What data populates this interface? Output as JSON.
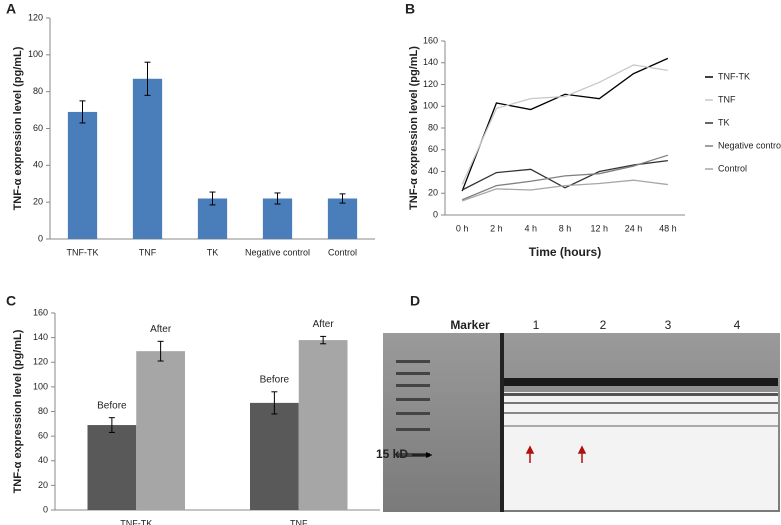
{
  "chart_data": [
    {
      "panel": "A",
      "type": "bar",
      "ylabel": "TNF-α expression level (pg/mL)",
      "categories": [
        "TNF-TK",
        "TNF",
        "TK",
        "Negative control",
        "Control"
      ],
      "values": [
        69,
        87,
        22,
        22,
        22
      ],
      "errors": [
        6,
        9,
        3.5,
        3,
        2.5
      ],
      "color": "#4a7ebb",
      "ylim": [
        0,
        120
      ],
      "yticks": [
        0,
        20,
        40,
        60,
        80,
        100,
        120
      ]
    },
    {
      "panel": "B",
      "type": "line",
      "ylabel": "TNF-α expression level (pg/mL)",
      "xlabel": "Time (hours)",
      "categories": [
        "0 h",
        "2 h",
        "4 h",
        "8 h",
        "12 h",
        "24 h",
        "48 h"
      ],
      "series": [
        {
          "name": "TNF-TK",
          "color": "#000000",
          "values": [
            22,
            103,
            97,
            111,
            107,
            130,
            144
          ]
        },
        {
          "name": "TNF",
          "color": "#c8c8c8",
          "values": [
            28,
            98,
            107,
            109,
            122,
            138,
            133
          ]
        },
        {
          "name": "TK",
          "color": "#333333",
          "values": [
            23,
            39,
            42,
            25,
            40,
            46,
            50
          ]
        },
        {
          "name": "Negative control",
          "color": "#808080",
          "values": [
            14,
            27,
            31,
            36,
            38,
            45,
            55
          ]
        },
        {
          "name": "Control",
          "color": "#a6a6a6",
          "values": [
            13,
            24,
            23,
            27,
            29,
            32,
            28
          ]
        }
      ],
      "ylim": [
        0,
        160
      ],
      "yticks": [
        0,
        20,
        40,
        60,
        80,
        100,
        120,
        140,
        160
      ]
    },
    {
      "panel": "C",
      "type": "bar",
      "ylabel": "TNF-α expression level (pg/mL)",
      "categories": [
        "TNF-TK",
        "TNF"
      ],
      "series": [
        {
          "name": "Before",
          "color": "#595959",
          "values": [
            69,
            87
          ],
          "errors": [
            6,
            9
          ]
        },
        {
          "name": "After",
          "color": "#a6a6a6",
          "values": [
            129,
            138
          ],
          "errors": [
            8,
            3
          ]
        }
      ],
      "ylim": [
        0,
        160
      ],
      "yticks": [
        0,
        20,
        40,
        60,
        80,
        100,
        120,
        140,
        160
      ]
    }
  ],
  "blot": {
    "panel": "D",
    "marker_label": "Marker",
    "lanes": [
      "1",
      "2",
      "3",
      "4"
    ],
    "size_label": "15 kD"
  }
}
